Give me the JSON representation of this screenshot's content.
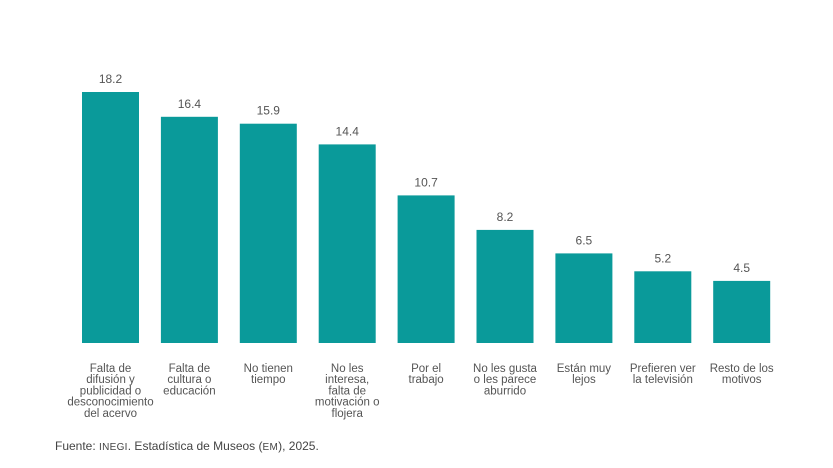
{
  "chart_data": {
    "type": "bar",
    "categories": [
      [
        "Falta de",
        "difusión y",
        "publicidad o",
        "desconocimiento",
        "del acervo"
      ],
      [
        "Falta de",
        "cultura o",
        "educación"
      ],
      [
        "No tienen",
        "tiempo"
      ],
      [
        "No les",
        "interesa,",
        "falta de",
        "motivación o",
        "flojera"
      ],
      [
        "Por el",
        "trabajo"
      ],
      [
        "No les gusta",
        "o les parece",
        "aburrido"
      ],
      [
        "Están muy",
        "lejos"
      ],
      [
        "Prefieren ver",
        "la televisión"
      ],
      [
        "Resto de los",
        "motivos"
      ]
    ],
    "values": [
      18.2,
      16.4,
      15.9,
      14.4,
      10.7,
      8.2,
      6.5,
      5.2,
      4.5
    ],
    "value_labels": [
      "18.2",
      "16.4",
      "15.9",
      "14.4",
      "10.7",
      "8.2",
      "6.5",
      "5.2",
      "4.5"
    ],
    "ylim": [
      0,
      18.2
    ],
    "bar_color": "#0a9a9a",
    "grid": false,
    "legend": "none"
  },
  "source": {
    "prefix": "Fuente: ",
    "org": "INEGI",
    "middle": ". Estadística de Museos (",
    "abbr": "EM",
    "suffix": "), 2025."
  }
}
